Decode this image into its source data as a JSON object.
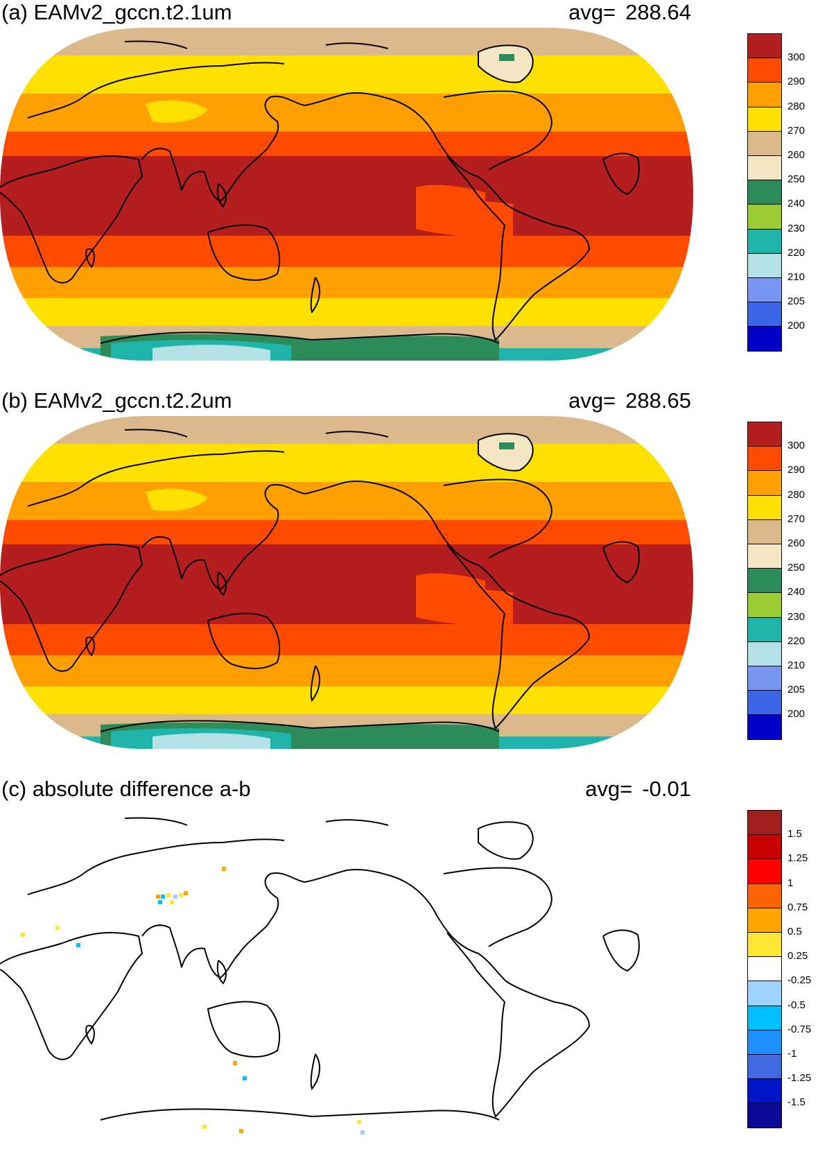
{
  "panels": [
    {
      "id": "a",
      "title": "(a) EAMv2_gccn.t2.1um",
      "avg_label": "avg=",
      "avg_value": "288.64",
      "variant": "temperature",
      "colorbar": {
        "colors": [
          "#0000c8",
          "#3c64e6",
          "#7896f0",
          "#b4e1e6",
          "#1eb4aa",
          "#9bcd32",
          "#2d8c5a",
          "#f5e6c3",
          "#dcb98c",
          "#ffe100",
          "#ffa000",
          "#ff4b00",
          "#b41e1e"
        ],
        "labels": [
          "200",
          "205",
          "210",
          "220",
          "230",
          "240",
          "250",
          "260",
          "270",
          "280",
          "290",
          "300"
        ]
      }
    },
    {
      "id": "b",
      "title": "(b) EAMv2_gccn.t2.2um",
      "avg_label": "avg=",
      "avg_value": "288.65",
      "variant": "temperature",
      "colorbar": {
        "colors": [
          "#0000c8",
          "#3c64e6",
          "#7896f0",
          "#b4e1e6",
          "#1eb4aa",
          "#9bcd32",
          "#2d8c5a",
          "#f5e6c3",
          "#dcb98c",
          "#ffe100",
          "#ffa000",
          "#ff4b00",
          "#b41e1e"
        ],
        "labels": [
          "200",
          "205",
          "210",
          "220",
          "230",
          "240",
          "250",
          "260",
          "270",
          "280",
          "290",
          "300"
        ]
      }
    },
    {
      "id": "c",
      "title": "(c) absolute difference a-b",
      "avg_label": "avg=",
      "avg_value": "-0.01",
      "variant": "difference",
      "colorbar": {
        "colors": [
          "#0a0a96",
          "#0014c8",
          "#4169e1",
          "#1e90ff",
          "#00bfff",
          "#a0d2ff",
          "#ffffff",
          "#ffe632",
          "#ffa500",
          "#ff6400",
          "#ff0000",
          "#c80000",
          "#a01e1e"
        ],
        "labels": [
          "-1.5",
          "-1.25",
          "-1",
          "-0.75",
          "-0.5",
          "-0.25",
          "0.25",
          "0.5",
          "0.75",
          "1",
          "1.25",
          "1.5"
        ]
      }
    }
  ]
}
